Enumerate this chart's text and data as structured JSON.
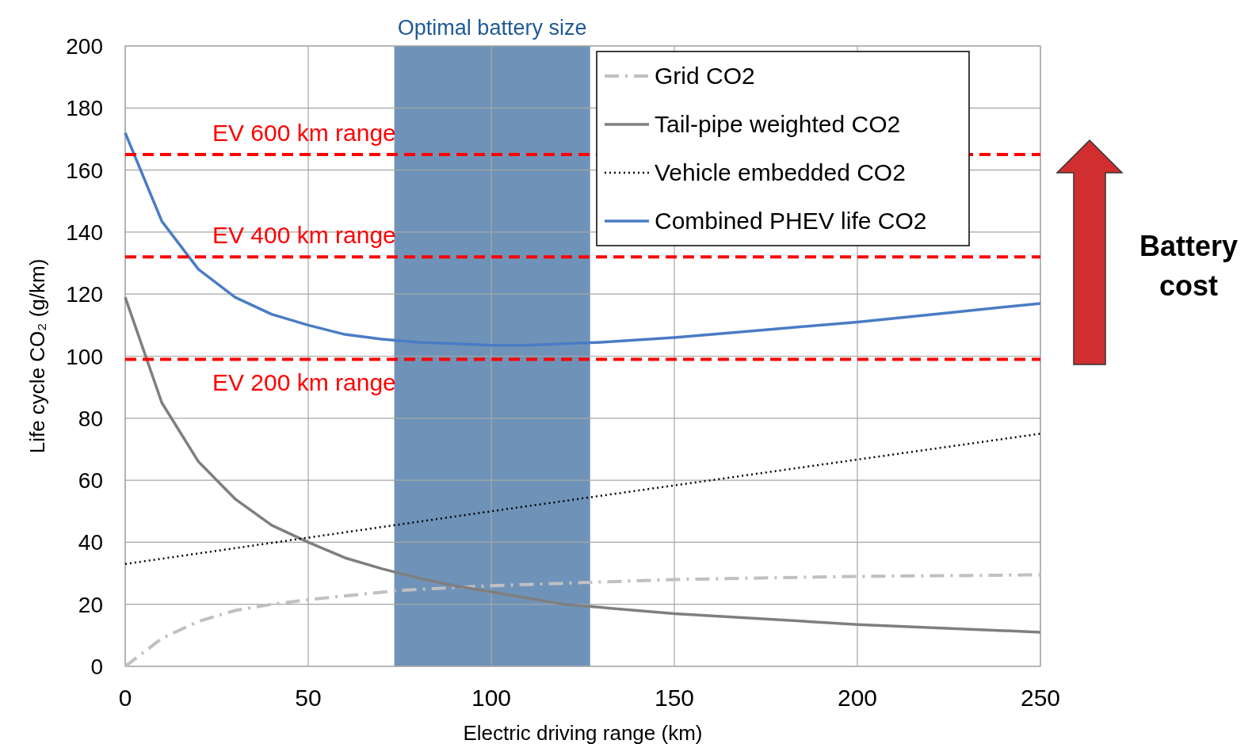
{
  "chart_data": {
    "type": "line",
    "xlabel": "Electric driving range (km)",
    "ylabel": "Life cycle CO₂ (g/km)",
    "xlim": [
      0,
      250
    ],
    "xticks": [
      0,
      50,
      100,
      150,
      200,
      250
    ],
    "ylim": [
      0,
      200
    ],
    "yticks": [
      0,
      20,
      40,
      60,
      80,
      100,
      120,
      140,
      160,
      180,
      200
    ],
    "grid": true,
    "legend": "top right",
    "marker": "none",
    "series": [
      {
        "name": "Grid CO2",
        "color": "#c0c0c0",
        "line_style": "dashdot",
        "x": [
          0,
          10,
          20,
          30,
          40,
          50,
          75,
          100,
          125,
          150,
          200,
          250
        ],
        "values": [
          0,
          9,
          14.5,
          18,
          20,
          21.5,
          24.5,
          26,
          27,
          28,
          29,
          29.5
        ]
      },
      {
        "name": "Tail-pipe weighted CO2",
        "color": "#7f7f7f",
        "line_style": "solid",
        "x": [
          0,
          10,
          20,
          30,
          40,
          50,
          60,
          70,
          80,
          90,
          100,
          120,
          150,
          200,
          250
        ],
        "values": [
          119,
          85,
          66,
          54,
          45.5,
          40,
          35,
          31.5,
          28.5,
          26,
          24,
          20,
          17,
          13.5,
          11
        ]
      },
      {
        "name": "Vehicle embedded CO2",
        "color": "#000000",
        "line_style": "dotted",
        "x": [
          0,
          100,
          250
        ],
        "values": [
          33,
          50,
          75
        ]
      },
      {
        "name": "Combined PHEV life CO2",
        "color": "#4a7cc4",
        "line_style": "solid",
        "x": [
          0,
          10,
          20,
          30,
          40,
          50,
          60,
          70,
          80,
          90,
          100,
          110,
          120,
          130,
          150,
          175,
          200,
          225,
          250
        ],
        "values": [
          172,
          143.5,
          128,
          119,
          113.5,
          110,
          107,
          105.5,
          104.5,
          104,
          103.5,
          103.5,
          104,
          104.5,
          106,
          108.5,
          111,
          114,
          117
        ]
      }
    ],
    "ref_lines": [
      {
        "axis": "y",
        "value": 165,
        "label": "EV 600 km range",
        "color": "#ff0000",
        "line_style": "dashed"
      },
      {
        "axis": "y",
        "value": 132,
        "label": "EV 400 km range",
        "color": "#ff0000",
        "line_style": "dashed"
      },
      {
        "axis": "y",
        "value": 99,
        "label": "EV 200 km range",
        "color": "#ff0000",
        "line_style": "dashed"
      }
    ],
    "bands": [
      {
        "axis": "x",
        "from": 73.5,
        "to": 127,
        "label": "Optimal battery size",
        "color": "#6f93b8"
      }
    ],
    "annotations": [
      "Battery cost"
    ]
  }
}
